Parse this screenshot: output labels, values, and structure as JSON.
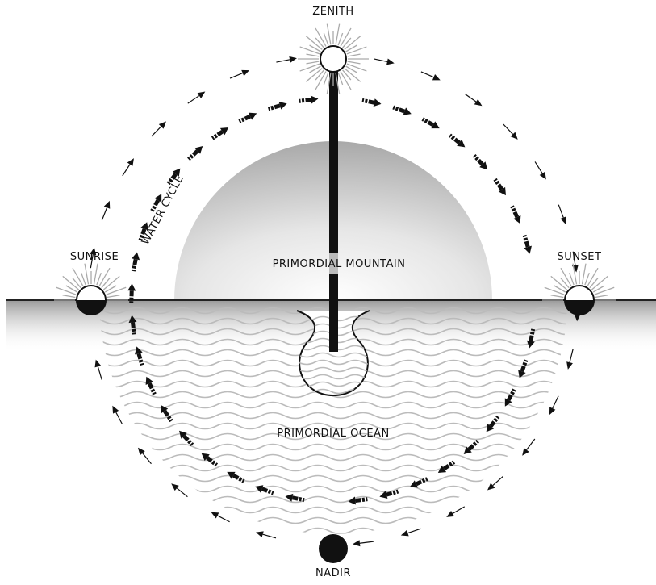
{
  "labels": {
    "zenith": "ZENITH",
    "sunrise": "SUNRISE",
    "sunset": "SUNSET",
    "nadir": "NADIR",
    "mountain": "PRIMORDIAL MOUNTAIN",
    "ocean": "PRIMORDIAL OCEAN",
    "water_cycle": "WATER CYCLE"
  }
}
